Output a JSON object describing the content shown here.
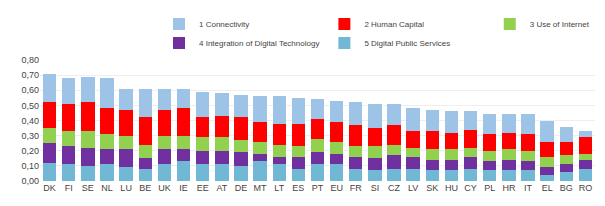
{
  "chart_data": {
    "type": "bar",
    "stacked": true,
    "categories": [
      "DK",
      "FI",
      "SE",
      "NL",
      "LU",
      "BE",
      "UK",
      "IE",
      "EE",
      "AT",
      "DE",
      "MT",
      "LT",
      "ES",
      "PT",
      "EU",
      "FR",
      "SI",
      "CZ",
      "LV",
      "SK",
      "HU",
      "CY",
      "PL",
      "HR",
      "IT",
      "EL",
      "BG",
      "RO"
    ],
    "series": [
      {
        "name": "5 Digital Public Services",
        "color": "#70B8D4",
        "values": [
          0.12,
          0.11,
          0.1,
          0.11,
          0.09,
          0.08,
          0.11,
          0.13,
          0.11,
          0.11,
          0.1,
          0.13,
          0.11,
          0.08,
          0.11,
          0.11,
          0.08,
          0.07,
          0.08,
          0.08,
          0.07,
          0.07,
          0.08,
          0.07,
          0.07,
          0.07,
          0.04,
          0.06,
          0.08
        ]
      },
      {
        "name": "4 Integration of Digital Technology",
        "color": "#7030A0",
        "values": [
          0.13,
          0.12,
          0.12,
          0.1,
          0.12,
          0.07,
          0.1,
          0.08,
          0.09,
          0.09,
          0.09,
          0.05,
          0.05,
          0.08,
          0.08,
          0.07,
          0.08,
          0.08,
          0.09,
          0.08,
          0.07,
          0.07,
          0.08,
          0.06,
          0.07,
          0.06,
          0.05,
          0.05,
          0.06
        ]
      },
      {
        "name": "3 Use of Internet",
        "color": "#92D050",
        "values": [
          0.1,
          0.1,
          0.11,
          0.1,
          0.09,
          0.09,
          0.09,
          0.09,
          0.09,
          0.09,
          0.08,
          0.08,
          0.08,
          0.07,
          0.09,
          0.08,
          0.07,
          0.08,
          0.07,
          0.06,
          0.07,
          0.07,
          0.06,
          0.07,
          0.07,
          0.07,
          0.07,
          0.06,
          0.04
        ]
      },
      {
        "name": "2 Human Capital",
        "color": "#FF0000",
        "values": [
          0.17,
          0.18,
          0.19,
          0.17,
          0.17,
          0.18,
          0.17,
          0.18,
          0.13,
          0.14,
          0.15,
          0.13,
          0.14,
          0.15,
          0.13,
          0.13,
          0.14,
          0.12,
          0.13,
          0.11,
          0.12,
          0.11,
          0.12,
          0.11,
          0.11,
          0.11,
          0.1,
          0.09,
          0.11
        ]
      },
      {
        "name": "1 Connectivity",
        "color": "#9DC3E6",
        "values": [
          0.19,
          0.17,
          0.17,
          0.2,
          0.14,
          0.19,
          0.14,
          0.13,
          0.17,
          0.15,
          0.15,
          0.17,
          0.18,
          0.17,
          0.13,
          0.14,
          0.15,
          0.16,
          0.14,
          0.15,
          0.14,
          0.14,
          0.12,
          0.13,
          0.12,
          0.13,
          0.14,
          0.1,
          0.04
        ]
      }
    ],
    "ylim": [
      0.0,
      0.8
    ],
    "yticks": [
      {
        "value": 0.0,
        "label": "0,00"
      },
      {
        "value": 0.1,
        "label": "0,10"
      },
      {
        "value": 0.2,
        "label": "0,20"
      },
      {
        "value": 0.3,
        "label": "0,30"
      },
      {
        "value": 0.4,
        "label": "0,40"
      },
      {
        "value": 0.5,
        "label": "0,50"
      },
      {
        "value": 0.6,
        "label": "0,60"
      },
      {
        "value": 0.7,
        "label": "0,70"
      },
      {
        "value": 0.8,
        "label": "0,80"
      }
    ],
    "grid": true,
    "legend": "upper right"
  }
}
